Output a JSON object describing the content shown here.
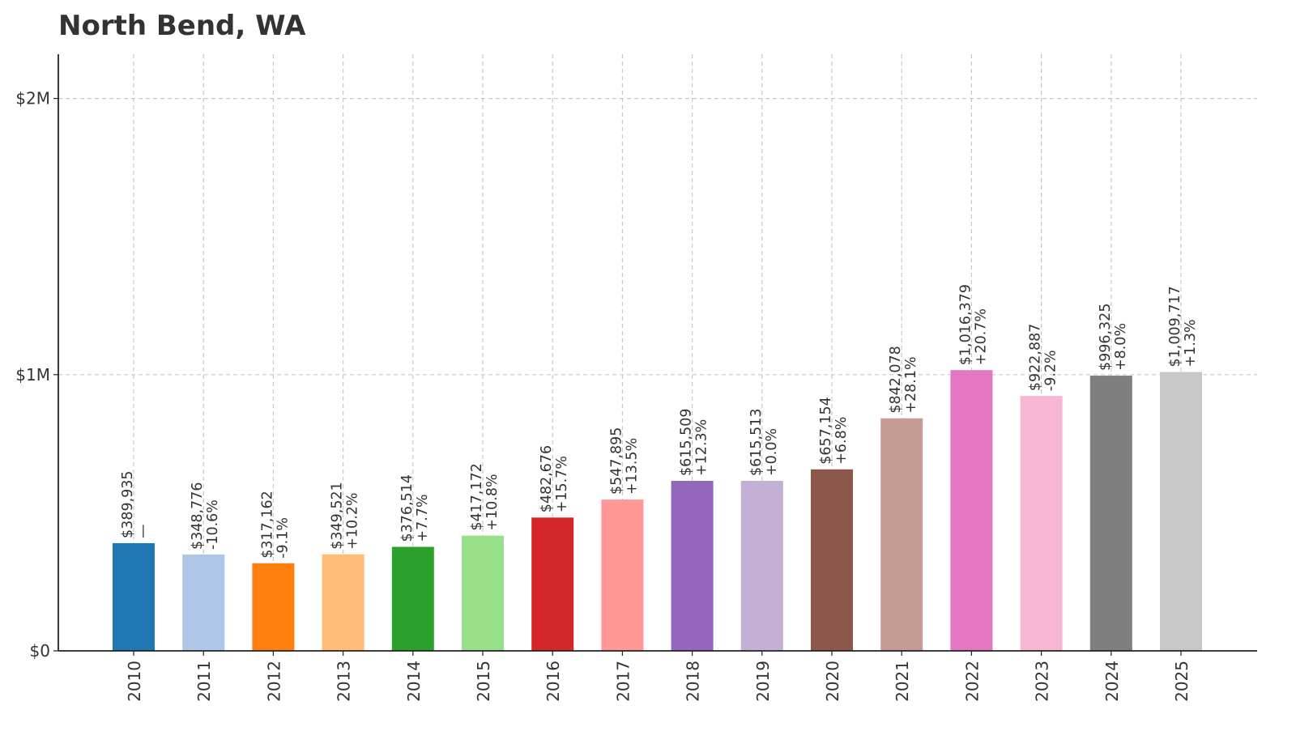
{
  "chart_data": {
    "type": "bar",
    "title": "North Bend, WA",
    "xlabel": "",
    "ylabel": "",
    "categories": [
      "2010",
      "2011",
      "2012",
      "2013",
      "2014",
      "2015",
      "2016",
      "2017",
      "2018",
      "2019",
      "2020",
      "2021",
      "2022",
      "2023",
      "2024",
      "2025"
    ],
    "values": [
      389935,
      348776,
      317162,
      349521,
      376514,
      417172,
      482676,
      547895,
      615509,
      615513,
      657154,
      842078,
      1016379,
      922887,
      996325,
      1009717
    ],
    "value_labels": [
      "$389,935",
      "$348,776",
      "$317,162",
      "$349,521",
      "$376,514",
      "$417,172",
      "$482,676",
      "$547,895",
      "$615,509",
      "$615,513",
      "$657,154",
      "$842,078",
      "$1,016,379",
      "$922,887",
      "$996,325",
      "$1,009,717"
    ],
    "change_labels": [
      "—",
      "-10.6%",
      "-9.1%",
      "+10.2%",
      "+7.7%",
      "+10.8%",
      "+15.7%",
      "+13.5%",
      "+12.3%",
      "+0.0%",
      "+6.8%",
      "+28.1%",
      "+20.7%",
      "-9.2%",
      "+8.0%",
      "+1.3%"
    ],
    "colors": [
      "#1f77b4",
      "#aec7e8",
      "#ff7f0e",
      "#ffbb78",
      "#2ca02c",
      "#98df8a",
      "#d62728",
      "#ff9896",
      "#9467bd",
      "#c5b0d5",
      "#8c564b",
      "#c49c94",
      "#e377c2",
      "#f7b6d2",
      "#7f7f7f",
      "#c7c7c7"
    ],
    "yticks": [
      0,
      1000000,
      2000000
    ],
    "ytick_labels": [
      "$0",
      "$1M",
      "$2M"
    ],
    "ylim": [
      0,
      2160000
    ],
    "grid": true
  }
}
